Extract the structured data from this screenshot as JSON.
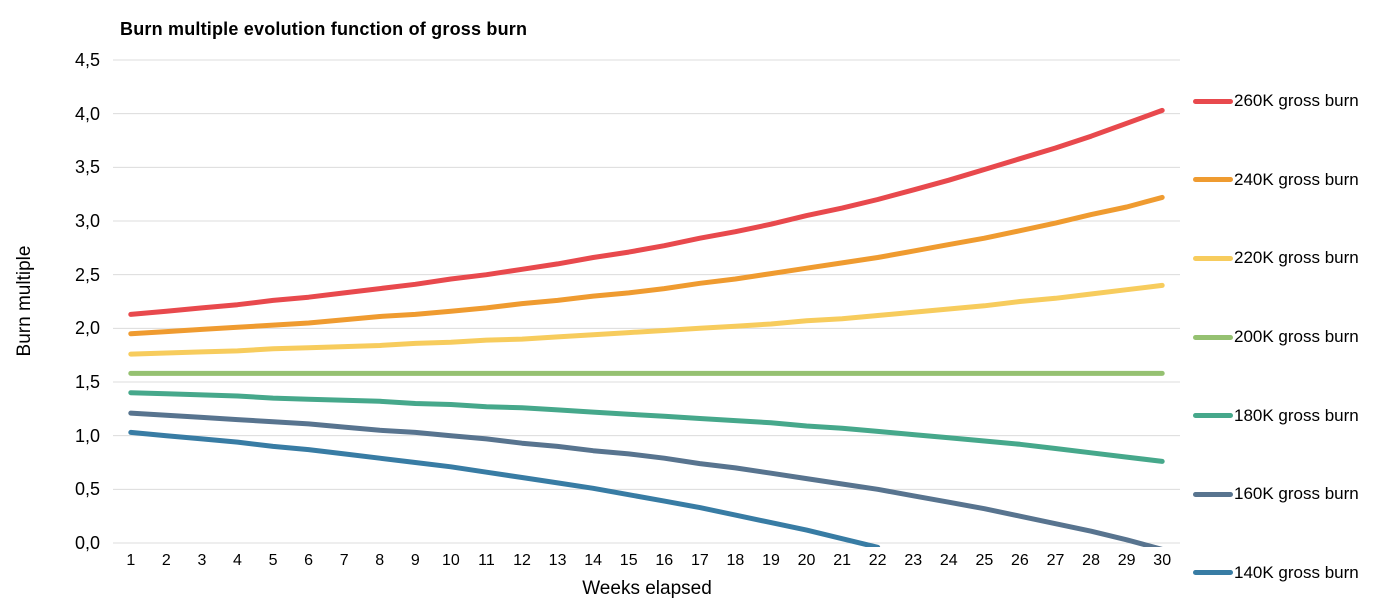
{
  "chart_data": {
    "type": "line",
    "title": "Burn multiple evolution function of gross burn",
    "xlabel": "Weeks elapsed",
    "ylabel": "Burn multiple",
    "x": [
      1,
      2,
      3,
      4,
      5,
      6,
      7,
      8,
      9,
      10,
      11,
      12,
      13,
      14,
      15,
      16,
      17,
      18,
      19,
      20,
      21,
      22,
      23,
      24,
      25,
      26,
      27,
      28,
      29,
      30
    ],
    "ylim": [
      0,
      4.5
    ],
    "ytick_step": 0.5,
    "ytick_labels": [
      "0,0",
      "0,5",
      "1,0",
      "1,5",
      "2,0",
      "2,5",
      "3,0",
      "3,5",
      "4,0",
      "4,5"
    ],
    "decimal_separator": ",",
    "grid": true,
    "gridline_color": "#dcdcdc",
    "legend_position": "right",
    "line_width": 5,
    "series": [
      {
        "name": "260K gross burn",
        "color": "#e8494d",
        "values": [
          2.13,
          2.16,
          2.19,
          2.22,
          2.26,
          2.29,
          2.33,
          2.37,
          2.41,
          2.46,
          2.5,
          2.55,
          2.6,
          2.66,
          2.71,
          2.77,
          2.84,
          2.9,
          2.97,
          3.05,
          3.12,
          3.2,
          3.29,
          3.38,
          3.48,
          3.58,
          3.68,
          3.79,
          3.91,
          4.03
        ]
      },
      {
        "name": "240K gross burn",
        "color": "#ef9b30",
        "values": [
          1.95,
          1.97,
          1.99,
          2.01,
          2.03,
          2.05,
          2.08,
          2.11,
          2.13,
          2.16,
          2.19,
          2.23,
          2.26,
          2.3,
          2.33,
          2.37,
          2.42,
          2.46,
          2.51,
          2.56,
          2.61,
          2.66,
          2.72,
          2.78,
          2.84,
          2.91,
          2.98,
          3.06,
          3.13,
          3.22
        ]
      },
      {
        "name": "220K gross burn",
        "color": "#f7cc5d",
        "values": [
          1.76,
          1.77,
          1.78,
          1.79,
          1.81,
          1.82,
          1.83,
          1.84,
          1.86,
          1.87,
          1.89,
          1.9,
          1.92,
          1.94,
          1.96,
          1.98,
          2.0,
          2.02,
          2.04,
          2.07,
          2.09,
          2.12,
          2.15,
          2.18,
          2.21,
          2.25,
          2.28,
          2.32,
          2.36,
          2.4
        ]
      },
      {
        "name": "200K gross burn",
        "color": "#95c171",
        "values": [
          1.58,
          1.58,
          1.58,
          1.58,
          1.58,
          1.58,
          1.58,
          1.58,
          1.58,
          1.58,
          1.58,
          1.58,
          1.58,
          1.58,
          1.58,
          1.58,
          1.58,
          1.58,
          1.58,
          1.58,
          1.58,
          1.58,
          1.58,
          1.58,
          1.58,
          1.58,
          1.58,
          1.58,
          1.58,
          1.58
        ]
      },
      {
        "name": "180K gross burn",
        "color": "#46a88b",
        "values": [
          1.4,
          1.39,
          1.38,
          1.37,
          1.35,
          1.34,
          1.33,
          1.32,
          1.3,
          1.29,
          1.27,
          1.26,
          1.24,
          1.22,
          1.2,
          1.18,
          1.16,
          1.14,
          1.12,
          1.09,
          1.07,
          1.04,
          1.01,
          0.98,
          0.95,
          0.92,
          0.88,
          0.84,
          0.8,
          0.76
        ]
      },
      {
        "name": "160K gross burn",
        "color": "#58748f",
        "values": [
          1.21,
          1.19,
          1.17,
          1.15,
          1.13,
          1.11,
          1.08,
          1.05,
          1.03,
          1.0,
          0.97,
          0.93,
          0.9,
          0.86,
          0.83,
          0.79,
          0.74,
          0.7,
          0.65,
          0.6,
          0.55,
          0.5,
          0.44,
          0.38,
          0.32,
          0.25,
          0.18,
          0.11,
          0.03,
          -0.06
        ]
      },
      {
        "name": "140K gross burn",
        "color": "#387ca4",
        "values": [
          1.03,
          1.0,
          0.97,
          0.94,
          0.9,
          0.87,
          0.83,
          0.79,
          0.75,
          0.71,
          0.66,
          0.61,
          0.56,
          0.51,
          0.45,
          0.39,
          0.33,
          0.26,
          0.19,
          0.12,
          0.04,
          -0.04,
          null,
          null,
          null,
          null,
          null,
          null,
          null,
          null
        ]
      }
    ]
  }
}
